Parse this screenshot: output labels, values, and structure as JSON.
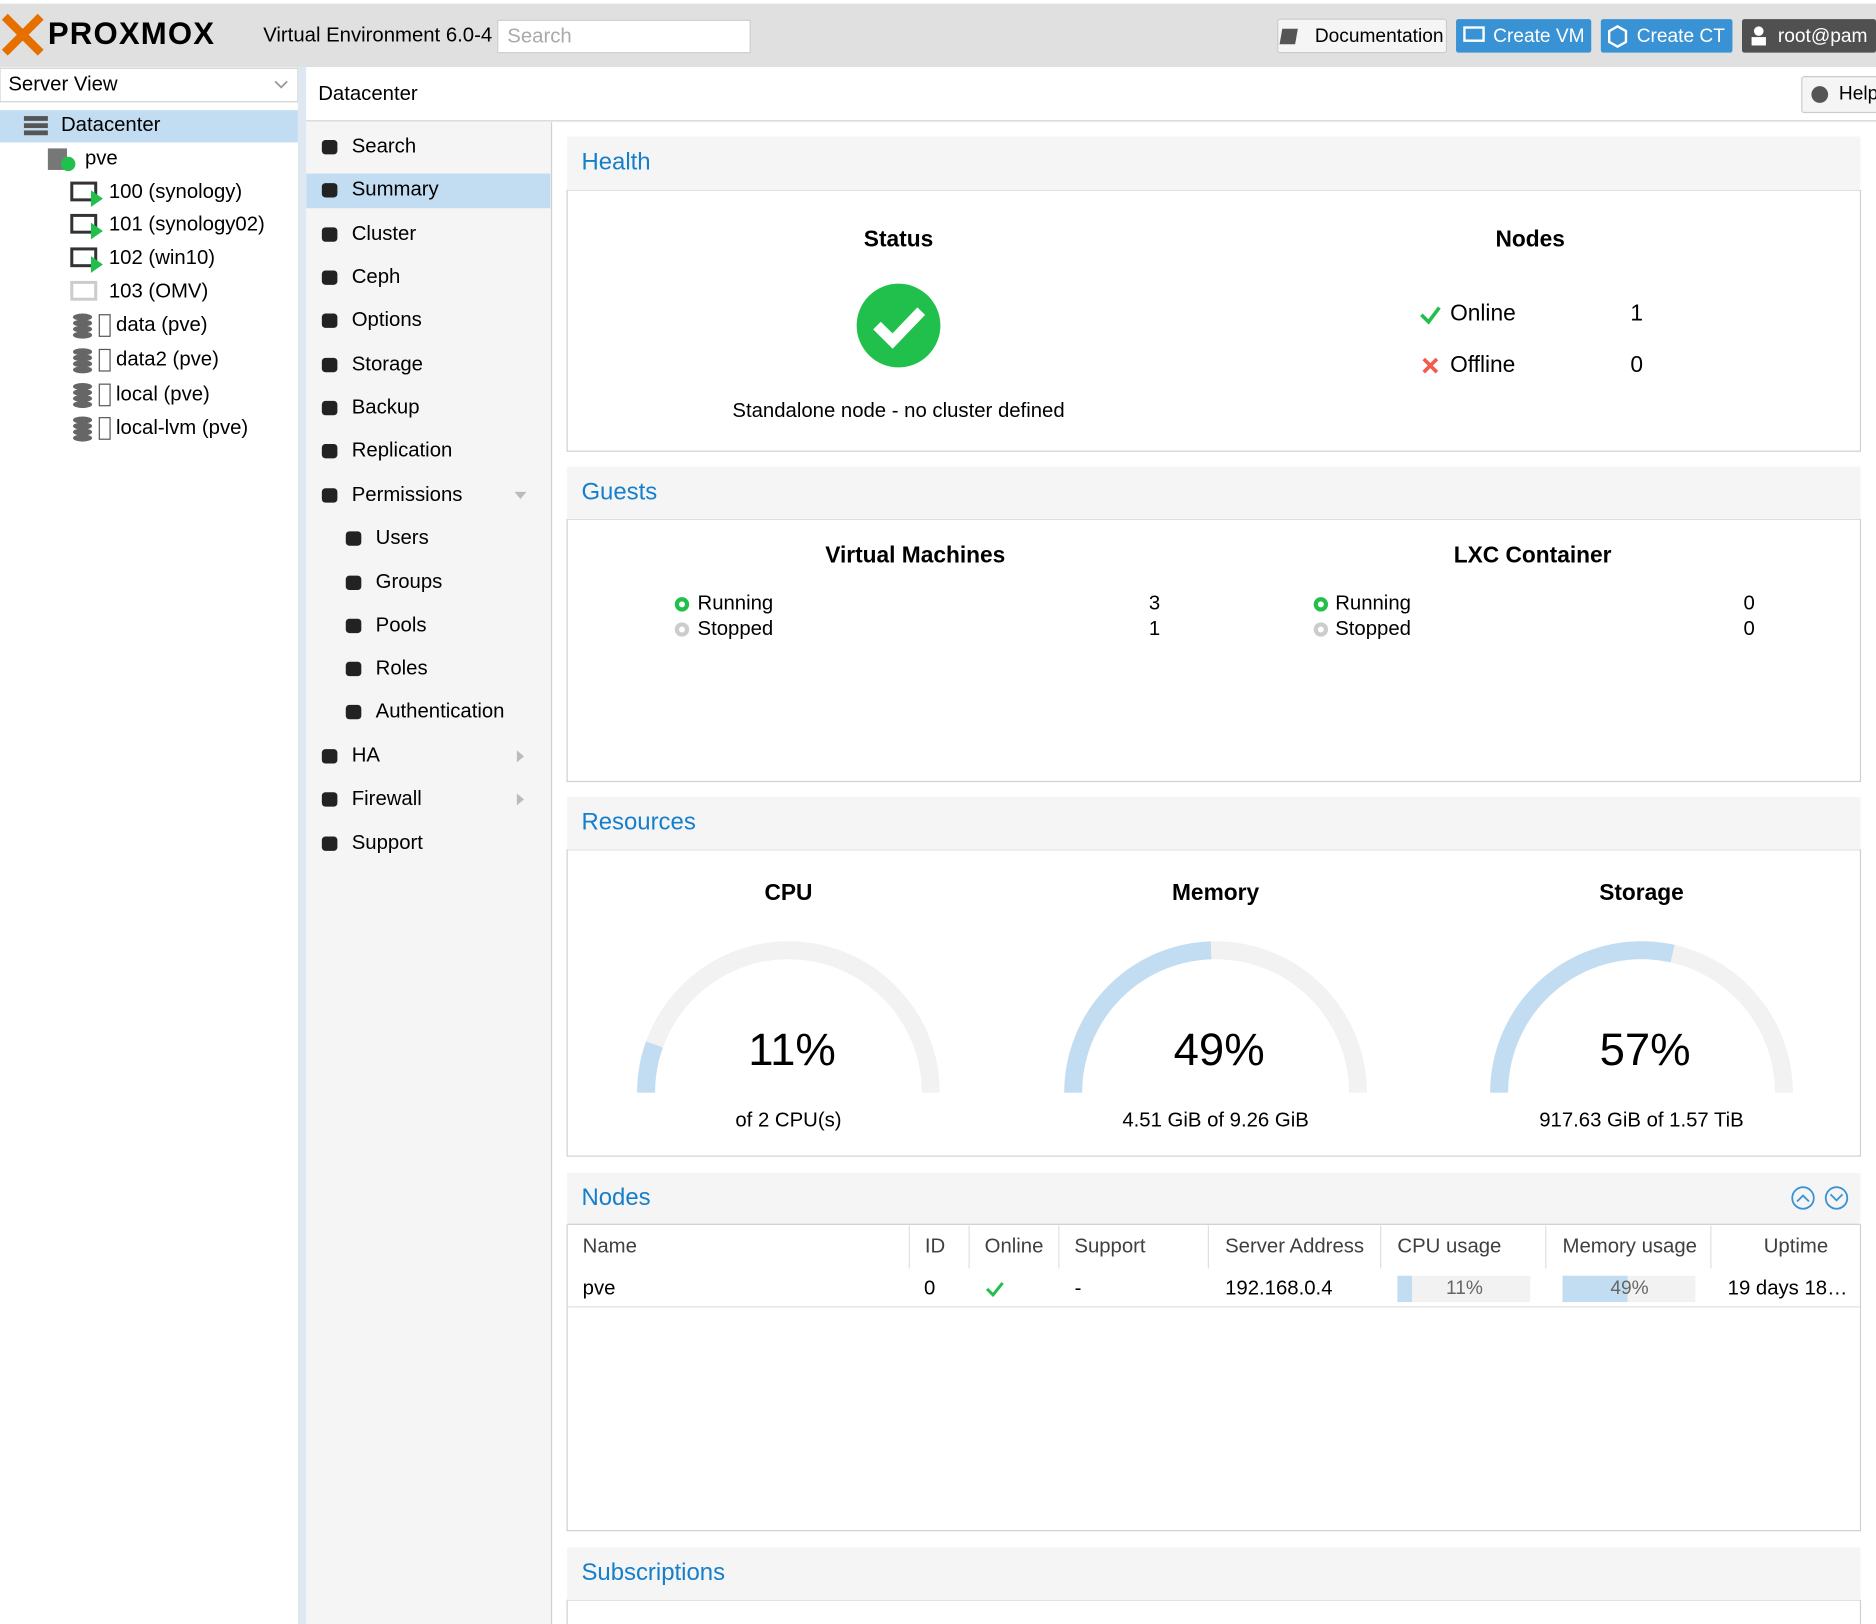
{
  "header": {
    "logo": "PROXMOX",
    "version": "Virtual Environment 6.0-4",
    "search_placeholder": "Search",
    "buttons": [
      "Documentation",
      "Create VM",
      "Create CT",
      "root@pam"
    ]
  },
  "tree": {
    "view": "Server View",
    "items": [
      "Datacenter",
      "pve",
      "100 (synology)",
      "101 (synology02)",
      "102 (win10)",
      "103 (OMV)",
      "data (pve)",
      "data2 (pve)",
      "local (pve)",
      "local-lvm (pve)"
    ]
  },
  "breadcrumb": "Datacenter",
  "help": "Help",
  "menu": [
    "Search",
    "Summary",
    "Cluster",
    "Ceph",
    "Options",
    "Storage",
    "Backup",
    "Replication",
    "Permissions",
    "Users",
    "Groups",
    "Pools",
    "Roles",
    "Authentication",
    "HA",
    "Firewall",
    "Support"
  ],
  "health": {
    "title": "Health",
    "status_heading": "Status",
    "status_text": "Standalone node - no cluster defined",
    "nodes_heading": "Nodes",
    "online": {
      "label": "Online",
      "value": 1
    },
    "offline": {
      "label": "Offline",
      "value": 0
    }
  },
  "guests": {
    "title": "Guests",
    "vm": {
      "heading": "Virtual Machines",
      "running": {
        "label": "Running",
        "value": 3
      },
      "stopped": {
        "label": "Stopped",
        "value": 1
      }
    },
    "lxc": {
      "heading": "LXC Container",
      "running": {
        "label": "Running",
        "value": 0
      },
      "stopped": {
        "label": "Stopped",
        "value": 0
      }
    }
  },
  "resources": {
    "title": "Resources",
    "gauges": [
      {
        "title": "CPU",
        "value": 11,
        "value_label": "11%",
        "detail": "of 2 CPU(s)"
      },
      {
        "title": "Memory",
        "value": 49,
        "value_label": "49%",
        "detail": "4.51 GiB of 9.26 GiB"
      },
      {
        "title": "Storage",
        "value": 57,
        "value_label": "57%",
        "detail": "917.63 GiB of 1.57 TiB"
      }
    ]
  },
  "nodes": {
    "title": "Nodes",
    "columns": [
      "Name",
      "ID",
      "Online",
      "Support",
      "Server Address",
      "CPU usage",
      "Memory usage",
      "Uptime"
    ],
    "rows": [
      {
        "name": "pve",
        "id": 0,
        "support": "-",
        "address": "192.168.0.4",
        "cpu": 11,
        "cpu_label": "11%",
        "memory": 49,
        "memory_label": "49%",
        "uptime": "19 days 18…"
      }
    ]
  },
  "subscriptions": {
    "title": "Subscriptions"
  }
}
